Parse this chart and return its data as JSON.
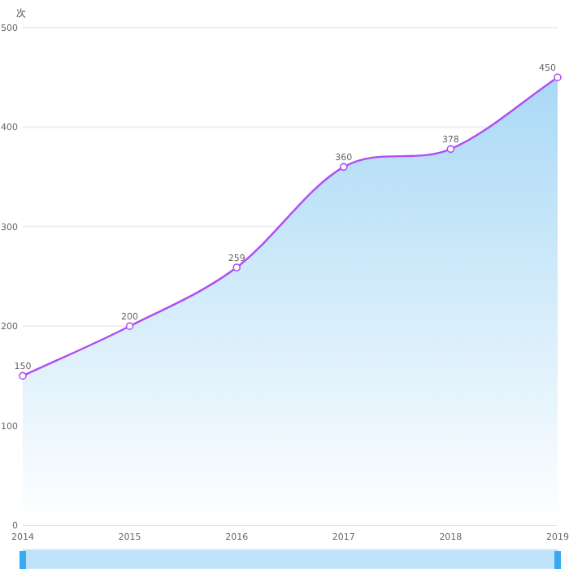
{
  "chart_data": {
    "type": "area",
    "ylabel": "次",
    "categories": [
      "2014",
      "2015",
      "2016",
      "2017",
      "2018",
      "2019"
    ],
    "series": [
      {
        "color": "#b04df5",
        "values": [
          150,
          200,
          259,
          360,
          378,
          450
        ]
      }
    ],
    "ylim": [
      0,
      500
    ],
    "yticks": [
      0,
      100,
      200,
      300,
      400,
      500
    ],
    "grid": "y",
    "marker": "circle",
    "data_labels": true
  }
}
